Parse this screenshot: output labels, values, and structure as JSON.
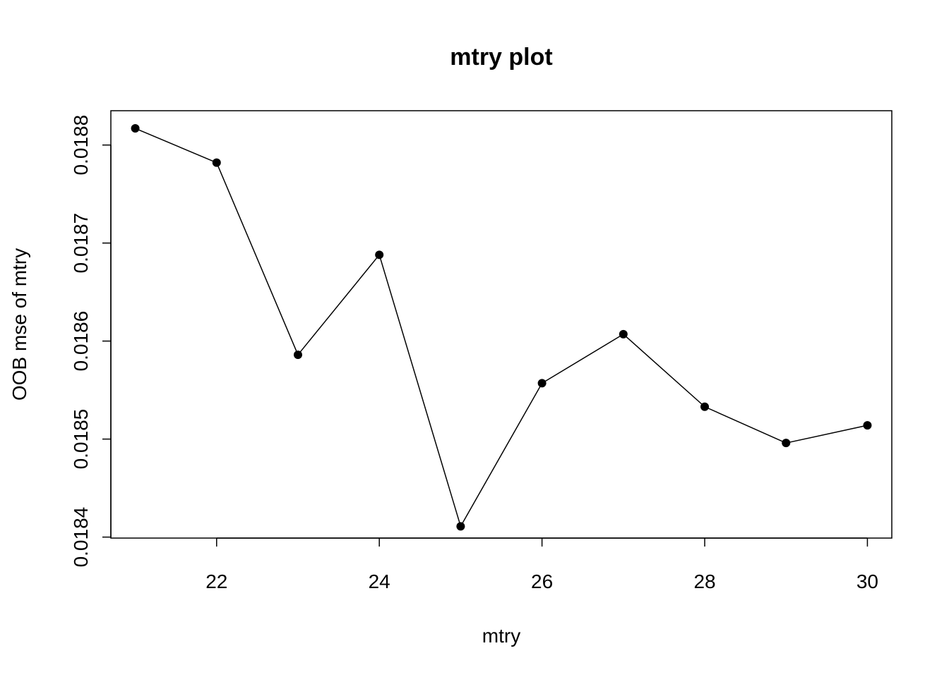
{
  "chart_data": {
    "type": "line",
    "title": "mtry plot",
    "xlabel": "mtry",
    "ylabel": "OOB mse of mtry",
    "x": [
      21,
      22,
      23,
      24,
      25,
      26,
      27,
      28,
      29,
      30
    ],
    "y": [
      0.018817,
      0.018782,
      0.018586,
      0.018688,
      0.018411,
      0.018557,
      0.018607,
      0.018533,
      0.018496,
      0.018514
    ],
    "xlim": [
      20.7,
      30.3
    ],
    "ylim": [
      0.018399,
      0.018835
    ],
    "xticks": [
      22,
      24,
      26,
      28,
      30
    ],
    "xtick_labels": [
      "22",
      "24",
      "26",
      "28",
      "30"
    ],
    "yticks": [
      0.0184,
      0.0185,
      0.0186,
      0.0187,
      0.0188
    ],
    "ytick_labels": [
      "0.0184",
      "0.0185",
      "0.0186",
      "0.0187",
      "0.0188"
    ],
    "grid": false,
    "marker": "filled-circle",
    "line_color": "#000000",
    "marker_color": "#000000"
  }
}
